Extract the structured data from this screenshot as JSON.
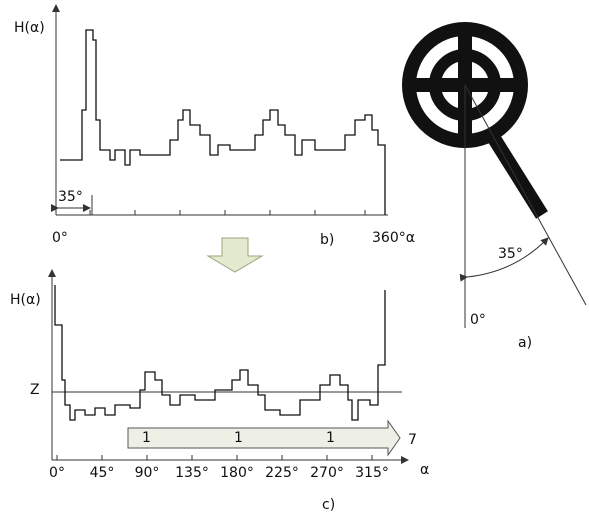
{
  "panel_b": {
    "y_label": "H(α)",
    "angle_marker": "35°",
    "x_start": "0°",
    "x_end": "360°α",
    "caption": "b)"
  },
  "panel_c": {
    "y_label": "H(α)",
    "threshold_label": "Z",
    "arrow_labels": [
      "1",
      "1",
      "1"
    ],
    "arrow_end": "7",
    "x_ticks": [
      "0°",
      "45°",
      "90°",
      "135°",
      "180°",
      "225°",
      "270°",
      "315°"
    ],
    "x_label": "α",
    "caption": "c)"
  },
  "panel_a": {
    "angle": "35°",
    "zero": "0°",
    "caption": "a)"
  }
}
